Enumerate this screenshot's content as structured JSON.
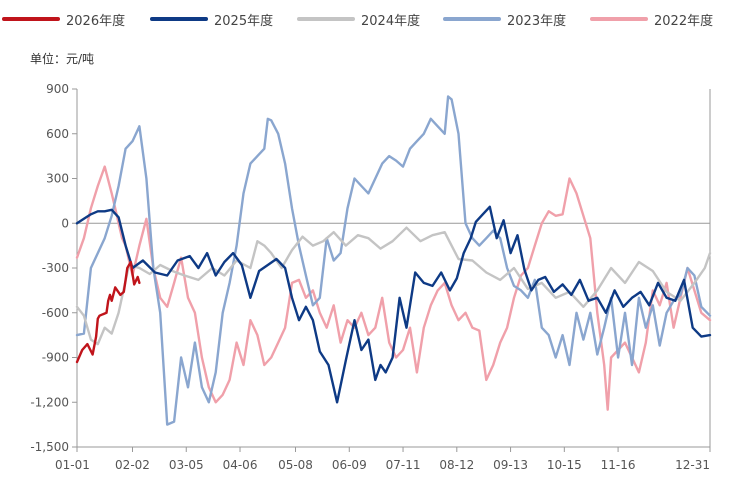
{
  "chart_data": {
    "type": "line",
    "title": "",
    "unit": "单位：元/吨",
    "xlabel": "",
    "ylabel": "",
    "ylim": [
      -1500,
      900
    ],
    "yticks": [
      -1500,
      -1200,
      -900,
      -600,
      -300,
      0,
      300,
      600,
      900
    ],
    "ytick_labels": [
      "-1,500",
      "-1,200",
      "-900",
      "-600",
      "-300",
      "0",
      "300",
      "600",
      "900"
    ],
    "xlim": [
      0,
      365
    ],
    "xticks": [
      0,
      32,
      63,
      94,
      126,
      157,
      188,
      219,
      250,
      281,
      312,
      365
    ],
    "xtick_labels": [
      "01-01",
      "02-02",
      "03-05",
      "04-06",
      "05-08",
      "06-09",
      "07-11",
      "08-12",
      "09-13",
      "10-15",
      "11-16",
      "12-31"
    ],
    "legend_position": "top",
    "series": [
      {
        "name": "2026年度",
        "color": "#c0141b",
        "width": 2.4,
        "x": [
          0,
          3,
          6,
          9,
          11,
          12,
          13,
          15,
          17,
          18,
          19,
          20,
          22,
          25,
          27,
          28,
          29,
          31,
          32,
          33,
          35,
          36
        ],
        "y": [
          -930,
          -850,
          -810,
          -880,
          -760,
          -640,
          -620,
          -610,
          -600,
          -520,
          -480,
          -520,
          -430,
          -480,
          -460,
          -380,
          -300,
          -260,
          -340,
          -410,
          -360,
          -400
        ]
      },
      {
        "name": "2025年度",
        "color": "#0e3a85",
        "width": 2.4,
        "x": [
          0,
          4,
          8,
          12,
          16,
          20,
          24,
          28,
          32,
          38,
          45,
          52,
          58,
          65,
          70,
          75,
          80,
          85,
          90,
          95,
          100,
          105,
          110,
          115,
          120,
          124,
          128,
          132,
          136,
          140,
          145,
          150,
          155,
          160,
          164,
          168,
          172,
          175,
          178,
          182,
          186,
          190,
          195,
          200,
          205,
          210,
          215,
          219,
          223,
          227,
          230,
          234,
          238,
          242,
          246,
          250,
          254,
          258,
          262,
          266,
          270,
          275,
          280,
          285,
          290,
          295,
          300,
          305,
          310,
          315,
          320,
          325,
          330,
          335,
          340,
          345,
          350,
          355,
          360,
          365
        ],
        "y": [
          0,
          30,
          60,
          80,
          80,
          90,
          40,
          -150,
          -300,
          -250,
          -330,
          -350,
          -250,
          -220,
          -300,
          -200,
          -350,
          -260,
          -200,
          -280,
          -500,
          -320,
          -280,
          -240,
          -300,
          -500,
          -650,
          -560,
          -650,
          -860,
          -950,
          -1200,
          -920,
          -650,
          -850,
          -780,
          -1050,
          -950,
          -1000,
          -900,
          -500,
          -700,
          -330,
          -400,
          -420,
          -330,
          -450,
          -370,
          -200,
          -100,
          10,
          60,
          110,
          -100,
          20,
          -200,
          -80,
          -310,
          -450,
          -380,
          -360,
          -460,
          -410,
          -480,
          -380,
          -520,
          -500,
          -600,
          -450,
          -560,
          -500,
          -460,
          -550,
          -400,
          -500,
          -520,
          -380,
          -700,
          -760,
          -750
        ]
      },
      {
        "name": "2024年度",
        "color": "#c4c4c4",
        "width": 2.4,
        "x": [
          0,
          4,
          8,
          12,
          16,
          20,
          24,
          30,
          36,
          42,
          48,
          55,
          62,
          70,
          78,
          85,
          92,
          100,
          104,
          108,
          112,
          118,
          124,
          130,
          136,
          142,
          148,
          155,
          162,
          168,
          175,
          182,
          190,
          198,
          205,
          212,
          220,
          228,
          236,
          244,
          252,
          260,
          268,
          276,
          284,
          292,
          300,
          308,
          316,
          324,
          332,
          340,
          348,
          356,
          362,
          365
        ],
        "y": [
          -560,
          -620,
          -780,
          -810,
          -700,
          -740,
          -600,
          -280,
          -300,
          -340,
          -280,
          -320,
          -350,
          -380,
          -300,
          -350,
          -250,
          -300,
          -120,
          -150,
          -200,
          -300,
          -180,
          -90,
          -150,
          -120,
          -60,
          -150,
          -80,
          -100,
          -170,
          -120,
          -30,
          -120,
          -80,
          -60,
          -240,
          -250,
          -330,
          -380,
          -300,
          -440,
          -400,
          -500,
          -460,
          -560,
          -450,
          -300,
          -400,
          -260,
          -320,
          -460,
          -520,
          -400,
          -300,
          -200
        ]
      },
      {
        "name": "2023年度",
        "color": "#8aa6cf",
        "width": 2.4,
        "x": [
          0,
          4,
          8,
          12,
          16,
          20,
          24,
          28,
          32,
          36,
          40,
          44,
          48,
          52,
          56,
          60,
          64,
          68,
          72,
          76,
          80,
          84,
          88,
          92,
          96,
          100,
          104,
          108,
          110,
          112,
          116,
          120,
          124,
          128,
          132,
          136,
          140,
          144,
          148,
          152,
          156,
          160,
          164,
          168,
          172,
          176,
          180,
          184,
          188,
          192,
          196,
          200,
          204,
          208,
          212,
          214,
          216,
          220,
          224,
          228,
          232,
          236,
          240,
          244,
          248,
          252,
          256,
          260,
          264,
          268,
          272,
          276,
          280,
          284,
          288,
          292,
          296,
          300,
          304,
          308,
          312,
          316,
          320,
          324,
          328,
          332,
          336,
          340,
          344,
          348,
          352,
          356,
          360,
          365
        ],
        "y": [
          -750,
          -740,
          -300,
          -200,
          -100,
          50,
          250,
          500,
          550,
          650,
          300,
          -300,
          -600,
          -1350,
          -1330,
          -900,
          -1100,
          -800,
          -1100,
          -1200,
          -1000,
          -600,
          -400,
          -150,
          200,
          400,
          450,
          500,
          700,
          690,
          600,
          400,
          100,
          -150,
          -350,
          -550,
          -500,
          -100,
          -250,
          -200,
          100,
          300,
          250,
          200,
          300,
          400,
          450,
          420,
          380,
          500,
          550,
          600,
          700,
          650,
          600,
          850,
          830,
          600,
          0,
          -100,
          -150,
          -100,
          -50,
          -100,
          -300,
          -420,
          -450,
          -500,
          -380,
          -700,
          -750,
          -900,
          -750,
          -950,
          -600,
          -780,
          -600,
          -880,
          -700,
          -500,
          -900,
          -600,
          -950,
          -500,
          -700,
          -550,
          -820,
          -600,
          -520,
          -480,
          -300,
          -350,
          -560,
          -620
        ]
      },
      {
        "name": "2022年度",
        "color": "#f0a0aa",
        "width": 2.4,
        "x": [
          0,
          4,
          8,
          12,
          16,
          20,
          22,
          24,
          26,
          28,
          30,
          32,
          36,
          40,
          44,
          48,
          52,
          56,
          60,
          64,
          68,
          72,
          76,
          80,
          84,
          88,
          92,
          96,
          100,
          104,
          108,
          112,
          116,
          120,
          124,
          128,
          132,
          136,
          140,
          144,
          148,
          152,
          156,
          160,
          164,
          168,
          172,
          176,
          180,
          184,
          188,
          192,
          196,
          200,
          204,
          208,
          212,
          216,
          220,
          224,
          228,
          232,
          236,
          240,
          244,
          248,
          252,
          256,
          260,
          264,
          268,
          272,
          276,
          280,
          284,
          288,
          292,
          296,
          300,
          304,
          306,
          308,
          312,
          316,
          320,
          324,
          328,
          332,
          336,
          340,
          344,
          348,
          352,
          356,
          360,
          365
        ],
        "y": [
          -230,
          -100,
          100,
          250,
          380,
          200,
          100,
          0,
          -100,
          -150,
          -250,
          -350,
          -150,
          30,
          -300,
          -500,
          -560,
          -400,
          -230,
          -500,
          -600,
          -900,
          -1100,
          -1200,
          -1150,
          -1050,
          -800,
          -950,
          -650,
          -750,
          -950,
          -900,
          -800,
          -700,
          -400,
          -380,
          -500,
          -450,
          -600,
          -700,
          -550,
          -800,
          -650,
          -700,
          -600,
          -750,
          -700,
          -500,
          -800,
          -900,
          -850,
          -700,
          -1000,
          -700,
          -550,
          -450,
          -400,
          -550,
          -650,
          -600,
          -700,
          -720,
          -1050,
          -950,
          -800,
          -700,
          -500,
          -350,
          -300,
          -150,
          0,
          80,
          50,
          60,
          300,
          200,
          50,
          -100,
          -600,
          -950,
          -1250,
          -900,
          -850,
          -800,
          -900,
          -1000,
          -800,
          -450,
          -550,
          -400,
          -700,
          -500,
          -300,
          -450,
          -600,
          -650
        ]
      }
    ]
  }
}
